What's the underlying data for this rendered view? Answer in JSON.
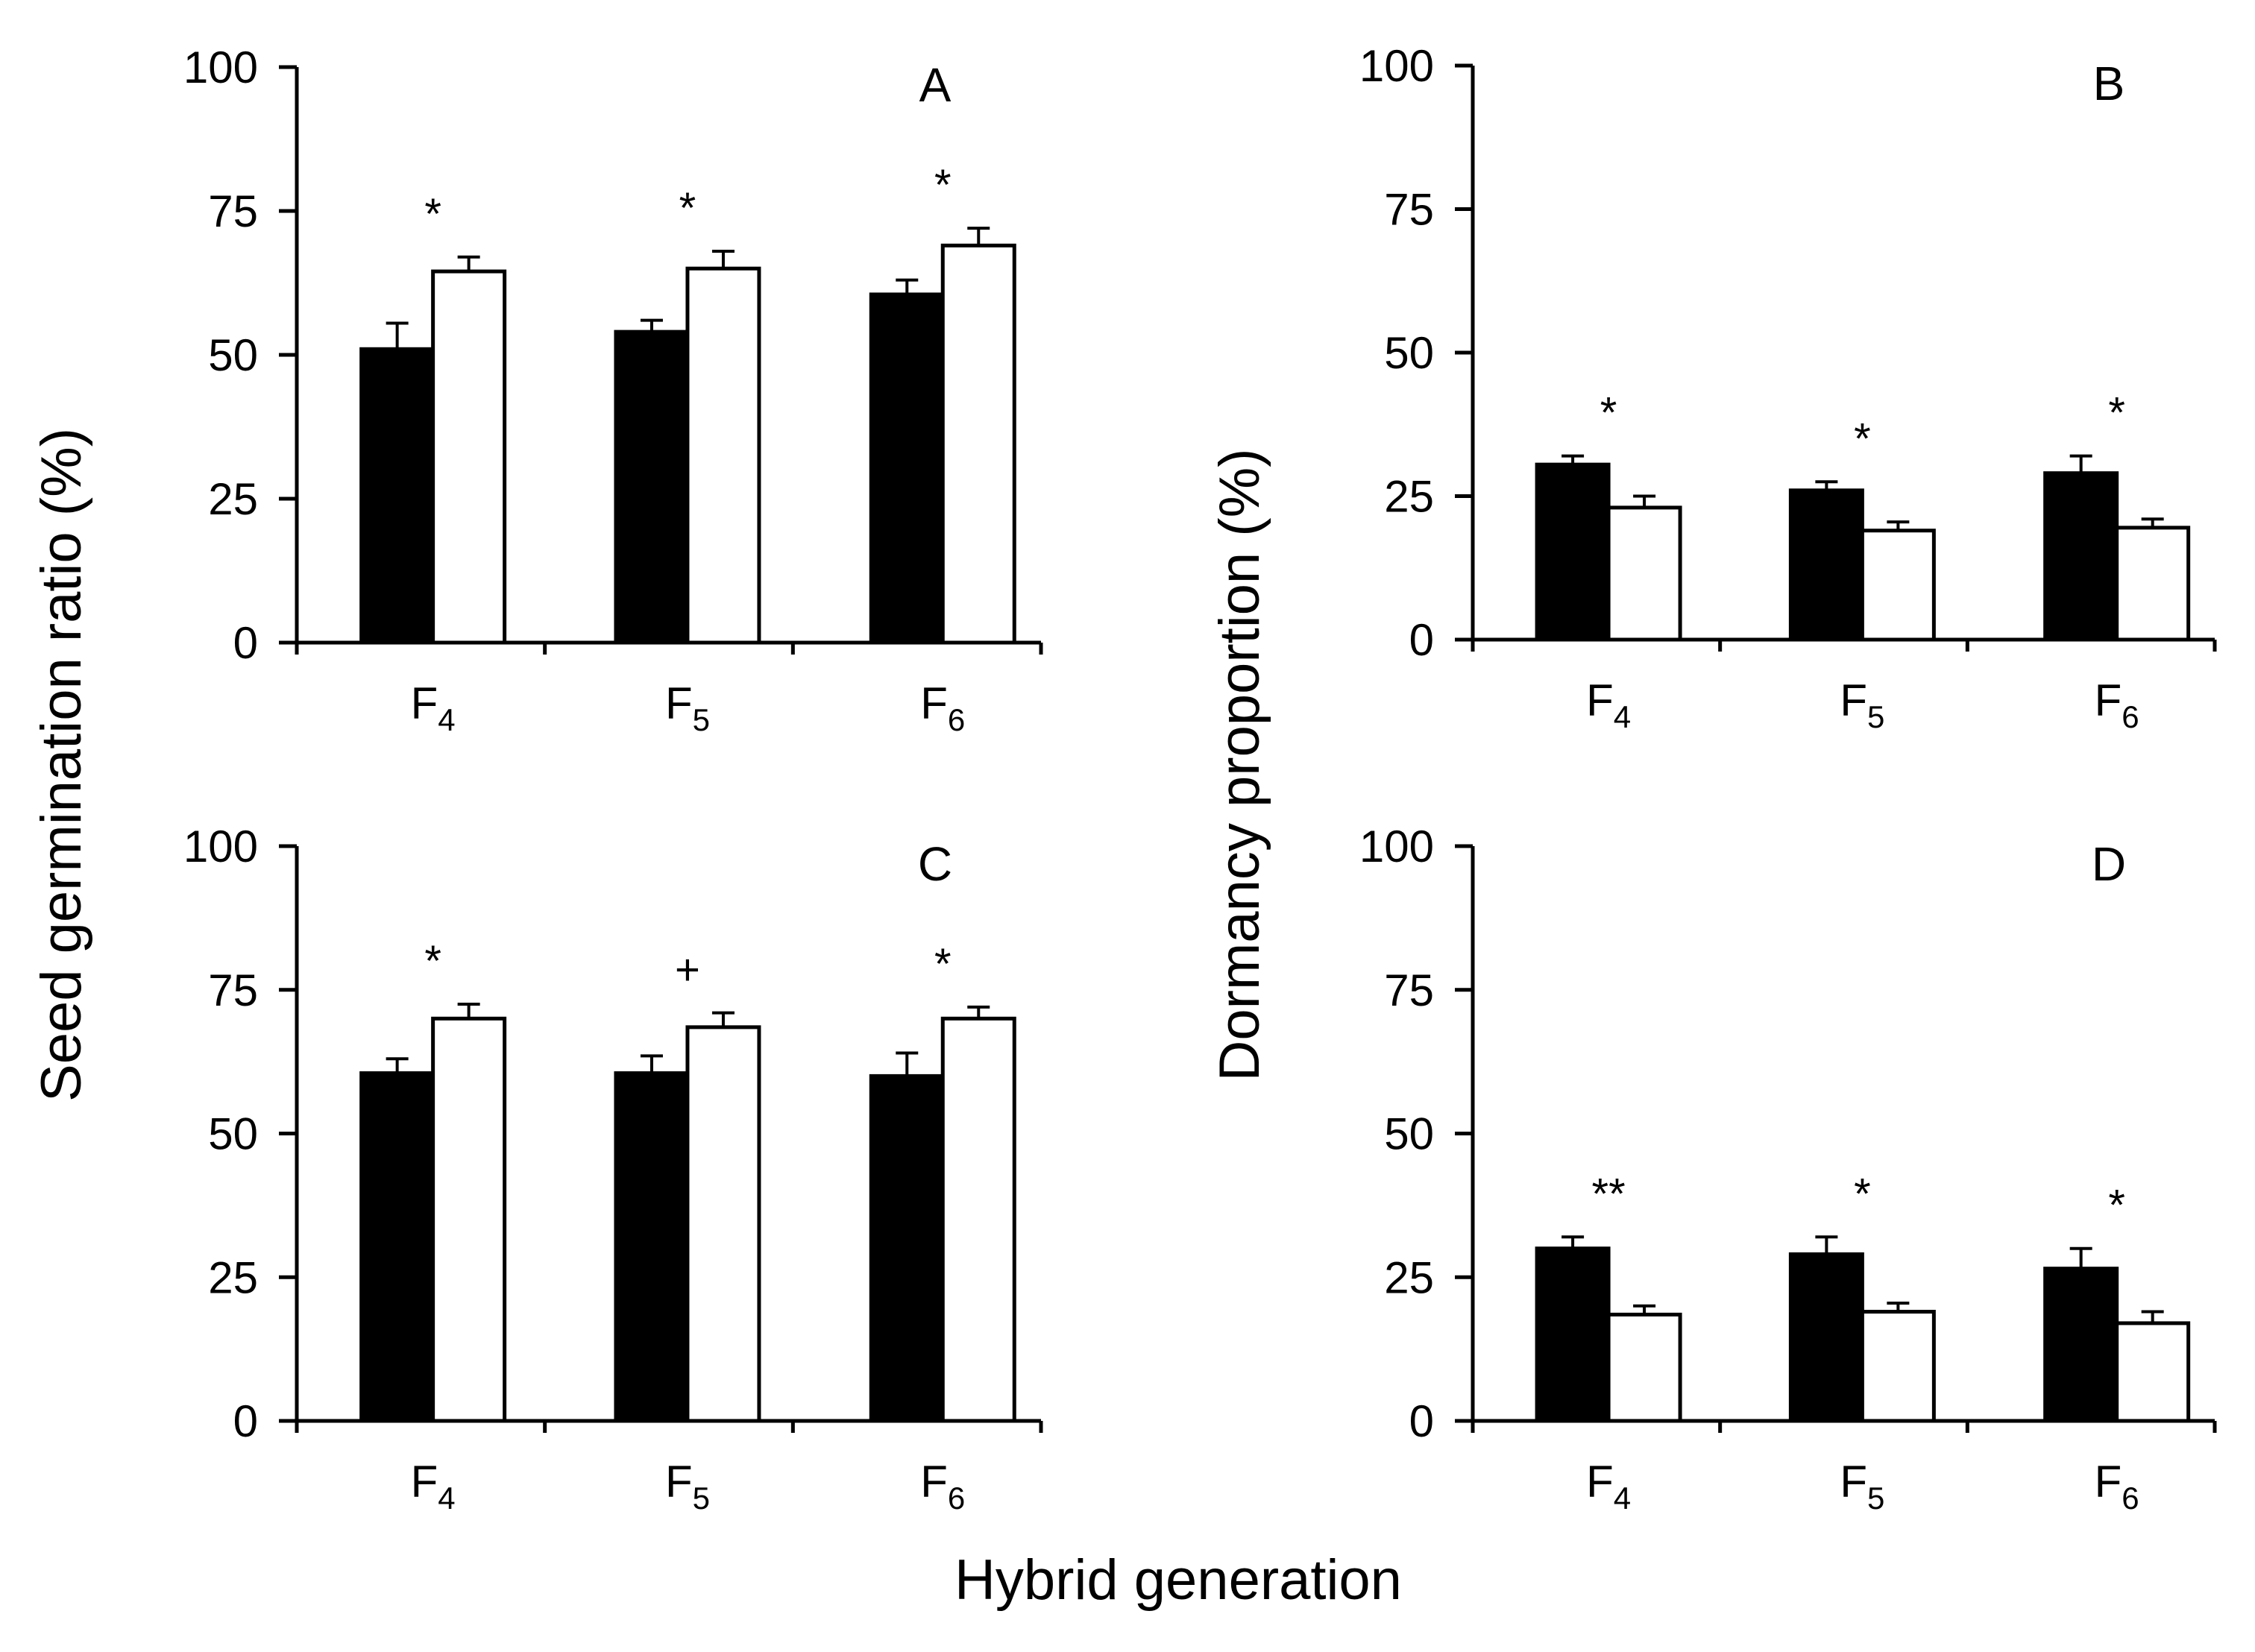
{
  "figure": {
    "y_label_left": "Seed germination ratio (%)",
    "y_label_right": "Dormancy proportion (%)",
    "x_label": "Hybrid generation"
  },
  "chart_data": [
    {
      "panel": "A",
      "type": "bar",
      "categories": [
        {
          "base": "F",
          "sub": "4"
        },
        {
          "base": "F",
          "sub": "5"
        },
        {
          "base": "F",
          "sub": "6"
        }
      ],
      "series": [
        {
          "name": "black",
          "color": "#000000",
          "values": [
            51,
            54,
            60.5
          ],
          "errors": [
            4.5,
            2,
            2.5
          ]
        },
        {
          "name": "white",
          "color": "#ffffff",
          "values": [
            64.5,
            65,
            69
          ],
          "errors": [
            2.5,
            3,
            3
          ]
        }
      ],
      "significance": [
        "*",
        "*",
        "*"
      ],
      "ylim": [
        0,
        100
      ],
      "yticks": [
        0,
        25,
        50,
        75,
        100
      ],
      "ylabel": "Seed germination ratio (%)"
    },
    {
      "panel": "B",
      "type": "bar",
      "categories": [
        {
          "base": "F",
          "sub": "4"
        },
        {
          "base": "F",
          "sub": "5"
        },
        {
          "base": "F",
          "sub": "6"
        }
      ],
      "series": [
        {
          "name": "black",
          "color": "#000000",
          "values": [
            30.5,
            26,
            29
          ],
          "errors": [
            1.5,
            1.5,
            3
          ]
        },
        {
          "name": "white",
          "color": "#ffffff",
          "values": [
            23,
            19,
            19.5
          ],
          "errors": [
            2,
            1.5,
            1.5
          ]
        }
      ],
      "significance": [
        "*",
        "*",
        "*"
      ],
      "ylim": [
        0,
        100
      ],
      "yticks": [
        0,
        25,
        50,
        75,
        100
      ],
      "ylabel": "Dormancy proportion (%)"
    },
    {
      "panel": "C",
      "type": "bar",
      "categories": [
        {
          "base": "F",
          "sub": "4"
        },
        {
          "base": "F",
          "sub": "5"
        },
        {
          "base": "F",
          "sub": "6"
        }
      ],
      "series": [
        {
          "name": "black",
          "color": "#000000",
          "values": [
            60.5,
            60.5,
            60
          ],
          "errors": [
            2.5,
            3,
            4
          ]
        },
        {
          "name": "white",
          "color": "#ffffff",
          "values": [
            70,
            68.5,
            70
          ],
          "errors": [
            2.5,
            2.5,
            2
          ]
        }
      ],
      "significance": [
        "*",
        "+",
        "*"
      ],
      "ylim": [
        0,
        100
      ],
      "yticks": [
        0,
        25,
        50,
        75,
        100
      ],
      "ylabel": "Seed germination ratio (%)"
    },
    {
      "panel": "D",
      "type": "bar",
      "categories": [
        {
          "base": "F",
          "sub": "4"
        },
        {
          "base": "F",
          "sub": "5"
        },
        {
          "base": "F",
          "sub": "6"
        }
      ],
      "series": [
        {
          "name": "black",
          "color": "#000000",
          "values": [
            30,
            29,
            26.5
          ],
          "errors": [
            2,
            3,
            3.5
          ]
        },
        {
          "name": "white",
          "color": "#ffffff",
          "values": [
            18.5,
            19,
            17
          ],
          "errors": [
            1.5,
            1.5,
            2
          ]
        }
      ],
      "significance": [
        "**",
        "*",
        "*"
      ],
      "ylim": [
        0,
        100
      ],
      "yticks": [
        0,
        25,
        50,
        75,
        100
      ],
      "ylabel": "Dormancy proportion (%)"
    }
  ]
}
